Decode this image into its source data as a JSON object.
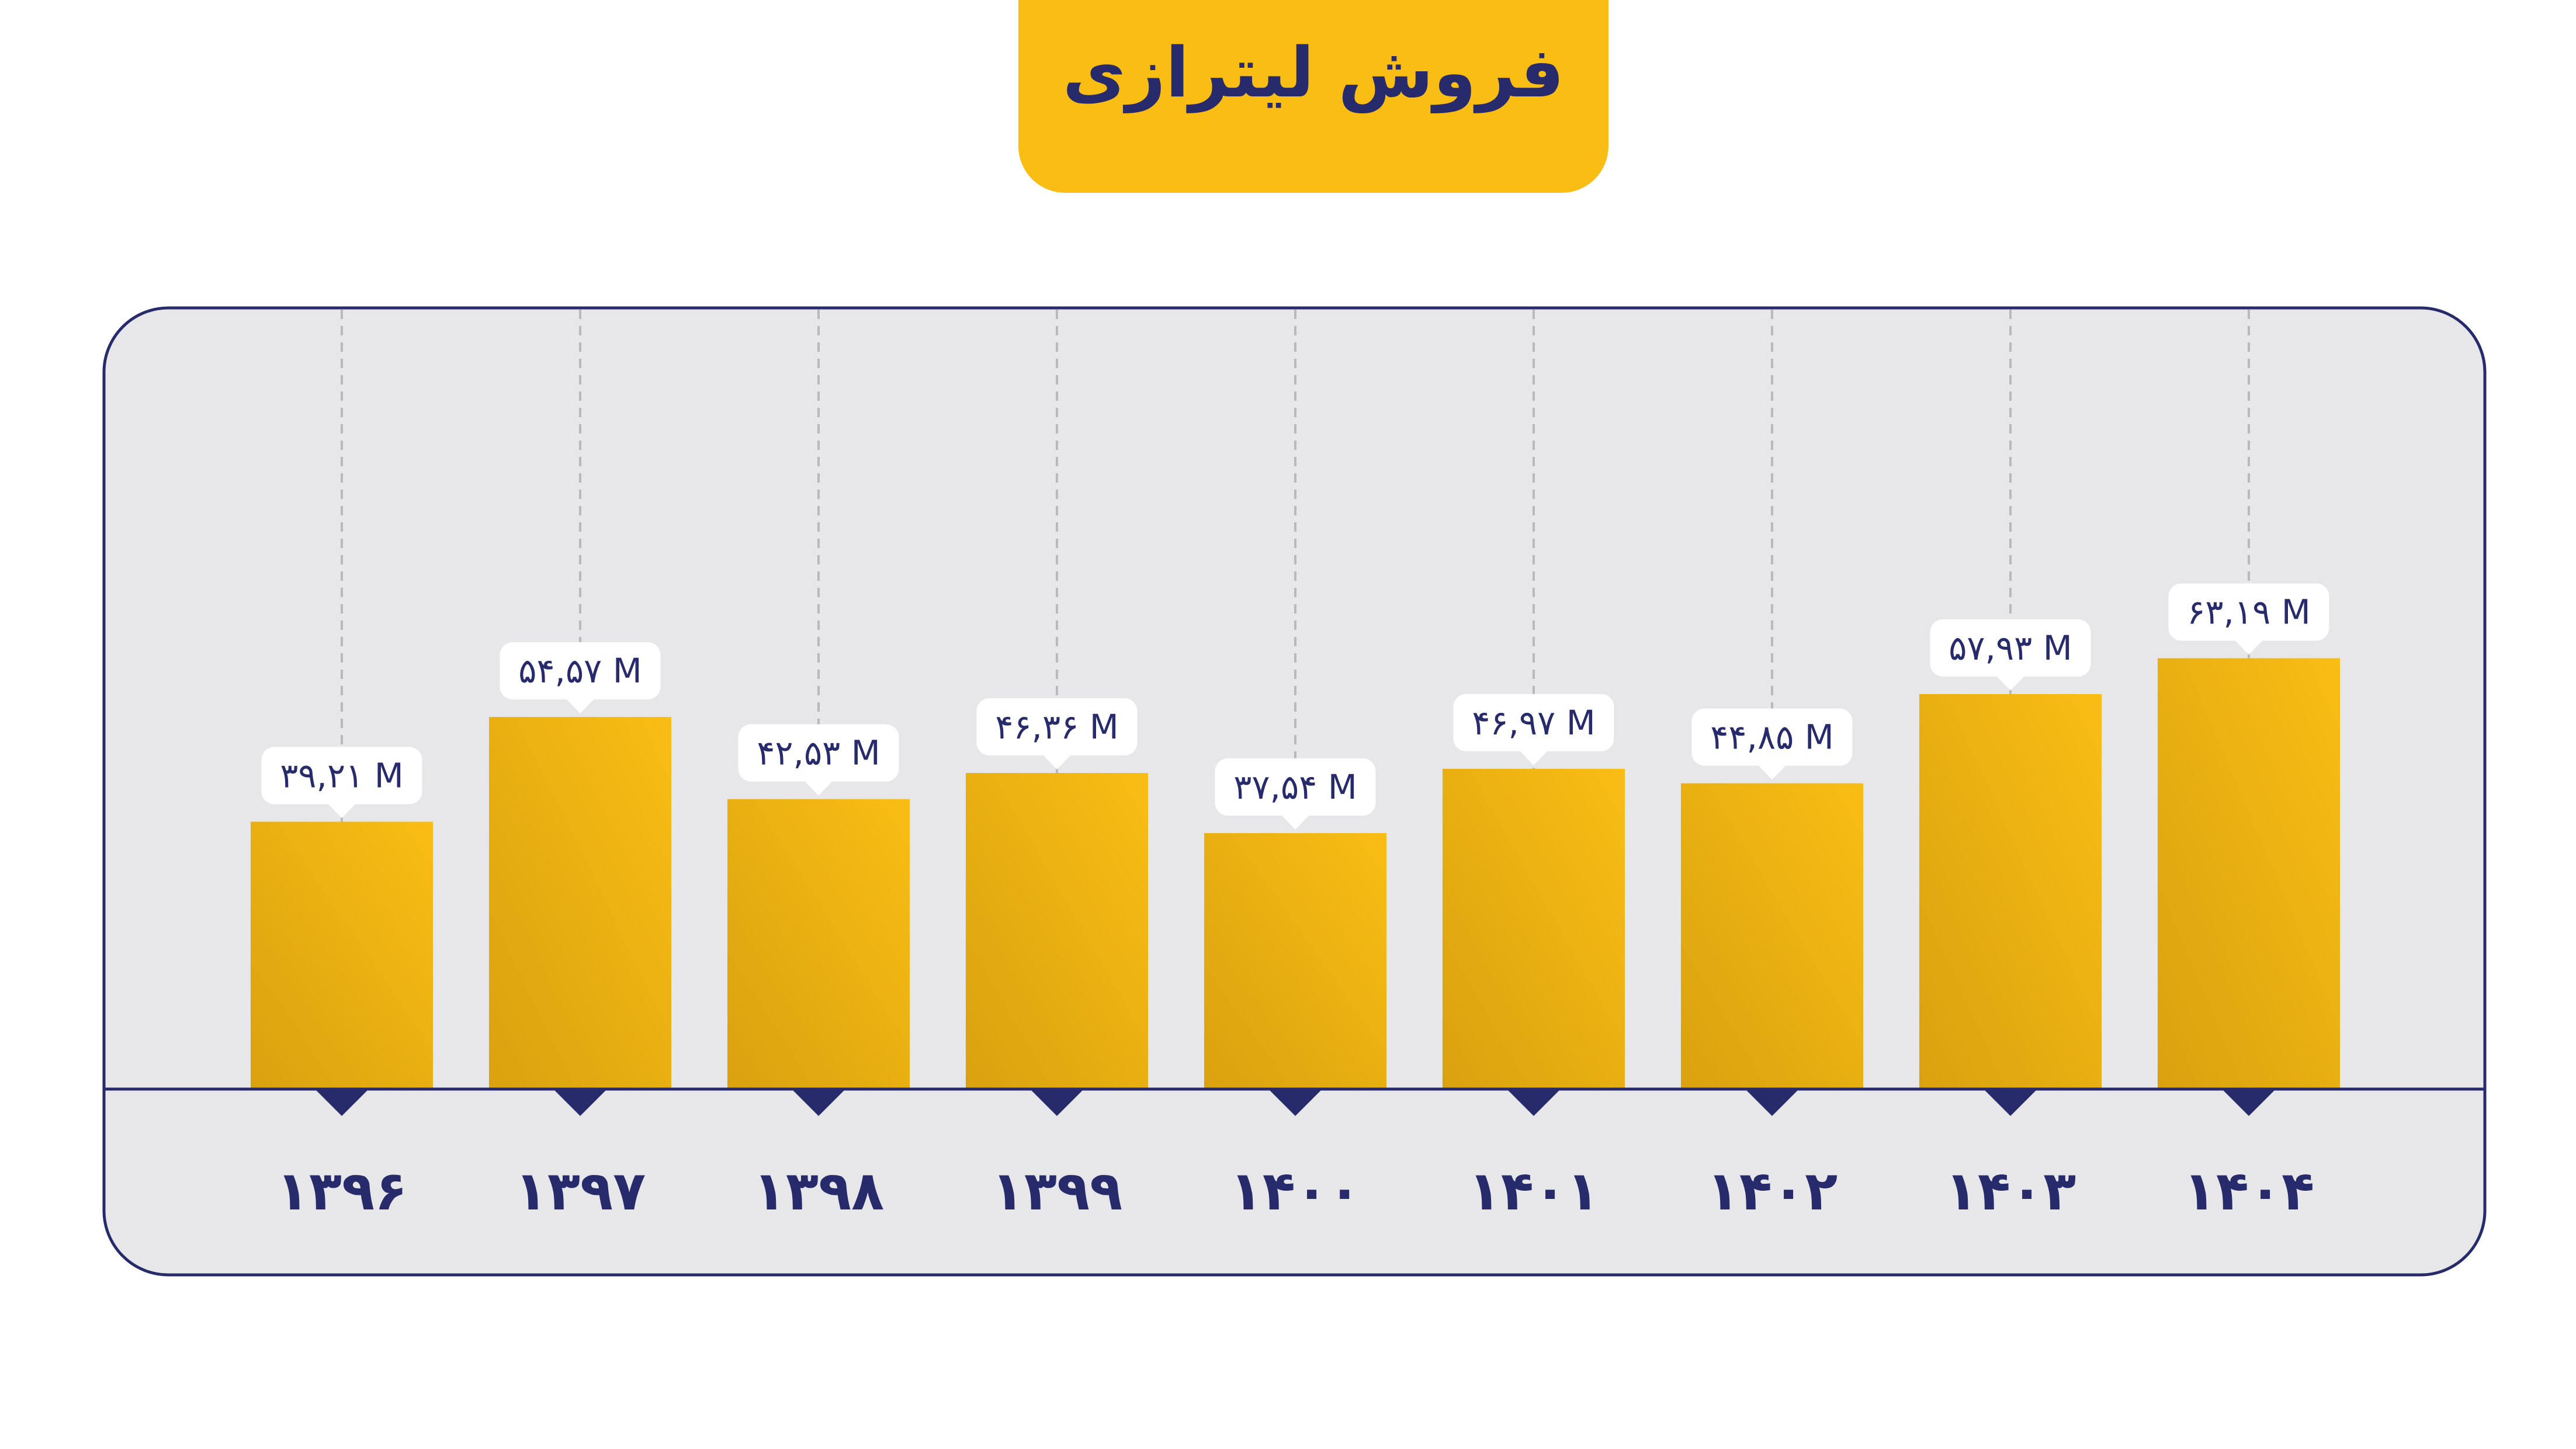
{
  "title": "فروش لیترازی",
  "colors": {
    "title_bg": "#f9bd14",
    "navy": "#272a6b",
    "panel_bg": "#e7e7ea",
    "bar_light": "#f9bd14",
    "bar_dark": "#d9a20f",
    "gridline": "#b9b9bd",
    "label_bg": "#ffffff"
  },
  "chart_data": {
    "type": "bar",
    "categories": [
      "۱۳۹۶",
      "۱۳۹۷",
      "۱۳۹۸",
      "۱۳۹۹",
      "۱۴۰۰",
      "۱۴۰۱",
      "۱۴۰۲",
      "۱۴۰۳",
      "۱۴۰۴"
    ],
    "values": [
      39.21,
      54.57,
      42.53,
      46.36,
      37.54,
      46.97,
      44.85,
      57.93,
      63.19
    ],
    "value_labels": [
      "۳۹,۲۱ M",
      "۵۴,۵۷ M",
      "۴۲,۵۳ M",
      "۴۶,۳۶ M",
      "۳۷,۵۴ M",
      "۴۶,۹۷ M",
      "۴۴,۸۵ M",
      "۵۷,۹۳ M",
      "۶۳,۱۹ M"
    ],
    "unit": "M",
    "ylim": [
      0,
      100
    ],
    "grid": "vertical dashed",
    "xlabel": "",
    "ylabel": ""
  }
}
